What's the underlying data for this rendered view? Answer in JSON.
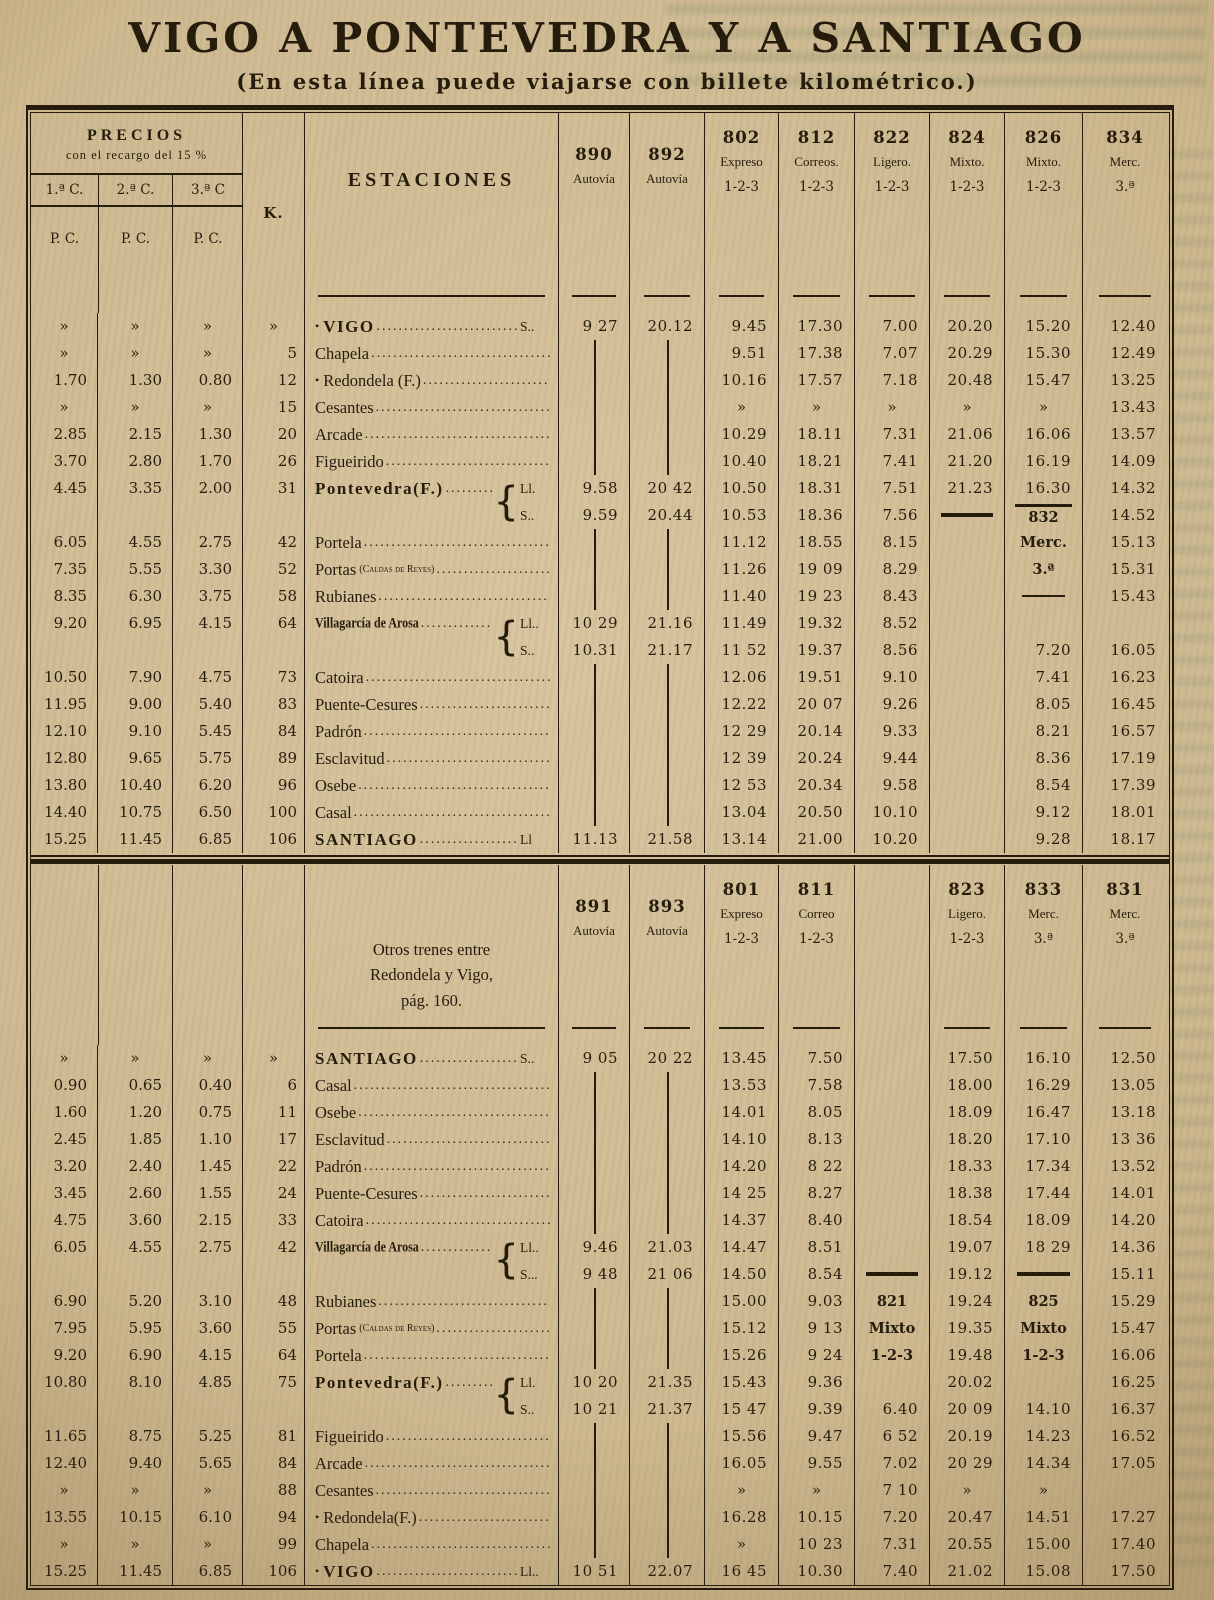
{
  "title": "VIGO A PONTEVEDRA Y A SANTIAGO",
  "subtitle": "(En esta línea puede viajarse con billete kilométrico.)",
  "colors": {
    "paper": "#cab690",
    "ink": "#241b0c"
  },
  "header": {
    "prices_title": "PRECIOS",
    "prices_subtitle": "con el recargo del 15 %",
    "class_labels": [
      "1.ª C.",
      "2.ª C.",
      "3.ª C"
    ],
    "unit_labels": [
      "P. C.",
      "P. C.",
      "P. C."
    ],
    "km_label": "K.",
    "stations_label": "ESTACIONES"
  },
  "sections": [
    {
      "trains": [
        {
          "number": "890",
          "type": "Autovía",
          "cls": ""
        },
        {
          "number": "892",
          "type": "Autovía",
          "cls": ""
        },
        {
          "number": "802",
          "type": "Expreso",
          "cls": "1-2-3"
        },
        {
          "number": "812",
          "type": "Correos.",
          "cls": "1-2-3"
        },
        {
          "number": "822",
          "type": "Ligero.",
          "cls": "1-2-3"
        },
        {
          "number": "824",
          "type": "Mixto.",
          "cls": "1-2-3"
        },
        {
          "number": "826",
          "type": "Mixto.",
          "cls": "1-2-3"
        },
        {
          "number": "834",
          "type": "Merc.",
          "cls": "3.ª"
        }
      ],
      "rows": [
        {
          "p": [
            "»",
            "»",
            "»"
          ],
          "km": "»",
          "prefix": "•",
          "name": "VIGO",
          "emph": true,
          "stop": "S..",
          "t": [
            "9 27",
            "20.12",
            "9.45",
            "17.30",
            "7.00",
            "20.20",
            "15.20",
            "12.40"
          ]
        },
        {
          "p": [
            "»",
            "»",
            "»"
          ],
          "km": "5",
          "name": "Chapela",
          "t": [
            "|",
            "|",
            "9.51",
            "17.38",
            "7.07",
            "20.29",
            "15.30",
            "12.49"
          ]
        },
        {
          "p": [
            "1.70",
            "1.30",
            "0.80"
          ],
          "km": "12",
          "prefix": "•",
          "name": "Redondela (F.)",
          "t": [
            "|",
            "|",
            "10.16",
            "17.57",
            "7.18",
            "20.48",
            "15.47",
            "13.25"
          ]
        },
        {
          "p": [
            "»",
            "»",
            "»"
          ],
          "km": "15",
          "name": "Cesantes",
          "t": [
            "|",
            "|",
            "»",
            "»",
            "»",
            "»",
            "»",
            "13.43"
          ]
        },
        {
          "p": [
            "2.85",
            "2.15",
            "1.30"
          ],
          "km": "20",
          "name": "Arcade",
          "t": [
            "|",
            "|",
            "10.29",
            "18.11",
            "7.31",
            "21.06",
            "16.06",
            "13.57"
          ]
        },
        {
          "p": [
            "3.70",
            "2.80",
            "1.70"
          ],
          "km": "26",
          "name": "Figueirido",
          "t": [
            "|",
            "|",
            "10.40",
            "18.21",
            "7.41",
            "21.20",
            "16.19",
            "14.09"
          ]
        },
        {
          "p": [
            "4.45",
            "3.35",
            "2.00"
          ],
          "km": "31",
          "name": "Pontevedra(F.)",
          "emph": true,
          "brace": "start",
          "stop": "Ll.",
          "t": [
            "9.58",
            "20 42",
            "10.50",
            "18.31",
            "7.51",
            "21.23",
            "16.30",
            "14.32"
          ]
        },
        {
          "p": [
            "",
            "",
            ""
          ],
          "km": "",
          "name": "",
          "brace": "end",
          "stop": "S..",
          "t": [
            "9.59",
            "20.44",
            "10.53",
            "18.36",
            "7.56",
            "═",
            "832",
            "14.52"
          ]
        },
        {
          "p": [
            "6.05",
            "4.55",
            "2.75"
          ],
          "km": "42",
          "name": "Portela",
          "t": [
            "|",
            "|",
            "11.12",
            "18.55",
            "8.15",
            "",
            "Merc.",
            "15.13"
          ]
        },
        {
          "p": [
            "7.35",
            "5.55",
            "3.30"
          ],
          "km": "52",
          "name": "Portas",
          "paren": "(Caldas de Reyes)",
          "t": [
            "|",
            "|",
            "11.26",
            "19 09",
            "8.29",
            "",
            "3.ª",
            "15.31"
          ]
        },
        {
          "p": [
            "8.35",
            "6.30",
            "3.75"
          ],
          "km": "58",
          "name": "Rubianes",
          "t": [
            "|",
            "|",
            "11.40",
            "19 23",
            "8.43",
            "",
            "─",
            "15.43"
          ]
        },
        {
          "p": [
            "9.20",
            "6.95",
            "4.15"
          ],
          "km": "64",
          "name": "Villagarcía de Arosa",
          "small": true,
          "brace": "start",
          "stop": "Ll..",
          "t": [
            "10 29",
            "21.16",
            "11.49",
            "19.32",
            "8.52",
            "",
            "",
            ""
          ]
        },
        {
          "p": [
            "",
            "",
            ""
          ],
          "km": "",
          "name": "",
          "brace": "end",
          "stop": "S..",
          "t": [
            "10.31",
            "21.17",
            "11 52",
            "19.37",
            "8.56",
            "",
            "7.20",
            "16.05"
          ]
        },
        {
          "p": [
            "10.50",
            "7.90",
            "4.75"
          ],
          "km": "73",
          "name": "Catoira",
          "t": [
            "|",
            "|",
            "12.06",
            "19.51",
            "9.10",
            "",
            "7.41",
            "16.23"
          ]
        },
        {
          "p": [
            "11.95",
            "9.00",
            "5.40"
          ],
          "km": "83",
          "name": "Puente-Cesures",
          "t": [
            "|",
            "|",
            "12.22",
            "20 07",
            "9.26",
            "",
            "8.05",
            "16.45"
          ]
        },
        {
          "p": [
            "12.10",
            "9.10",
            "5.45"
          ],
          "km": "84",
          "name": "Padrón",
          "t": [
            "|",
            "|",
            "12 29",
            "20.14",
            "9.33",
            "",
            "8.21",
            "16.57"
          ]
        },
        {
          "p": [
            "12.80",
            "9.65",
            "5.75"
          ],
          "km": "89",
          "name": "Esclavitud",
          "t": [
            "|",
            "|",
            "12 39",
            "20.24",
            "9.44",
            "",
            "8.36",
            "17.19"
          ]
        },
        {
          "p": [
            "13.80",
            "10.40",
            "6.20"
          ],
          "km": "96",
          "name": "Osebe",
          "t": [
            "|",
            "|",
            "12 53",
            "20.34",
            "9.58",
            "",
            "8.54",
            "17.39"
          ]
        },
        {
          "p": [
            "14.40",
            "10.75",
            "6.50"
          ],
          "km": "100",
          "name": "Casal",
          "t": [
            "|",
            "|",
            "13.04",
            "20.50",
            "10.10",
            "",
            "9.12",
            "18.01"
          ]
        },
        {
          "p": [
            "15.25",
            "11.45",
            "6.85"
          ],
          "km": "106",
          "name": "SANTIAGO",
          "emph": true,
          "stop": "Ll",
          "t": [
            "11.13",
            "21.58",
            "13.14",
            "21.00",
            "10.20",
            "",
            "9.28",
            "18.17"
          ]
        }
      ]
    },
    {
      "note_lines": [
        "Otros trenes entre",
        "Redondela y Vigo,",
        "pág. 160."
      ],
      "trains": [
        {
          "number": "891",
          "type": "Autovía",
          "cls": ""
        },
        {
          "number": "893",
          "type": "Autovía",
          "cls": ""
        },
        {
          "number": "801",
          "type": "Expreso",
          "cls": "1-2-3"
        },
        {
          "number": "811",
          "type": "Correo",
          "cls": "1-2-3"
        },
        {
          "number": "",
          "type": "",
          "cls": ""
        },
        {
          "number": "823",
          "type": "Ligero.",
          "cls": "1-2-3"
        },
        {
          "number": "833",
          "type": "Merc.",
          "cls": "3.ª"
        },
        {
          "number": "831",
          "type": "Merc.",
          "cls": "3.ª"
        }
      ],
      "rows": [
        {
          "p": [
            "»",
            "»",
            "»"
          ],
          "km": "»",
          "name": "SANTIAGO",
          "emph": true,
          "stop": "S..",
          "t": [
            "9 05",
            "20 22",
            "13.45",
            "7.50",
            "",
            "17.50",
            "16.10",
            "12.50"
          ]
        },
        {
          "p": [
            "0.90",
            "0.65",
            "0.40"
          ],
          "km": "6",
          "name": "Casal",
          "t": [
            "|",
            "|",
            "13.53",
            "7.58",
            "",
            "18.00",
            "16.29",
            "13.05"
          ]
        },
        {
          "p": [
            "1.60",
            "1.20",
            "0.75"
          ],
          "km": "11",
          "name": "Osebe",
          "t": [
            "|",
            "|",
            "14.01",
            "8.05",
            "",
            "18.09",
            "16.47",
            "13.18"
          ]
        },
        {
          "p": [
            "2.45",
            "1.85",
            "1.10"
          ],
          "km": "17",
          "name": "Esclavitud",
          "t": [
            "|",
            "|",
            "14.10",
            "8.13",
            "",
            "18.20",
            "17.10",
            "13 36"
          ]
        },
        {
          "p": [
            "3.20",
            "2.40",
            "1.45"
          ],
          "km": "22",
          "name": "Padrón",
          "t": [
            "|",
            "|",
            "14.20",
            "8 22",
            "",
            "18.33",
            "17.34",
            "13.52"
          ]
        },
        {
          "p": [
            "3.45",
            "2.60",
            "1.55"
          ],
          "km": "24",
          "name": "Puente-Cesures",
          "t": [
            "|",
            "|",
            "14 25",
            "8.27",
            "",
            "18.38",
            "17.44",
            "14.01"
          ]
        },
        {
          "p": [
            "4.75",
            "3.60",
            "2.15"
          ],
          "km": "33",
          "name": "Catoira",
          "t": [
            "|",
            "|",
            "14.37",
            "8.40",
            "",
            "18.54",
            "18.09",
            "14.20"
          ]
        },
        {
          "p": [
            "6.05",
            "4.55",
            "2.75"
          ],
          "km": "42",
          "name": "Villagarcía de Arosa",
          "small": true,
          "brace": "start",
          "stop": "Ll..",
          "t": [
            "9.46",
            "21.03",
            "14.47",
            "8.51",
            "",
            "19.07",
            "18 29",
            "14.36"
          ]
        },
        {
          "p": [
            "",
            "",
            ""
          ],
          "km": "",
          "name": "",
          "brace": "end",
          "stop": "S...",
          "t": [
            "9 48",
            "21 06",
            "14.50",
            "8.54",
            "═",
            "19.12",
            "═",
            "15.11"
          ]
        },
        {
          "p": [
            "6.90",
            "5.20",
            "3.10"
          ],
          "km": "48",
          "name": "Rubianes",
          "t": [
            "|",
            "|",
            "15.00",
            "9.03",
            "821",
            "19.24",
            "825",
            "15.29"
          ]
        },
        {
          "p": [
            "7.95",
            "5.95",
            "3.60"
          ],
          "km": "55",
          "name": "Portas",
          "paren": "(Caldas de Reyes)",
          "t": [
            "|",
            "|",
            "15.12",
            "9 13",
            "Mixto",
            "19.35",
            "Mixto",
            "15.47"
          ]
        },
        {
          "p": [
            "9.20",
            "6.90",
            "4.15"
          ],
          "km": "64",
          "name": "Portela",
          "t": [
            "|",
            "|",
            "15.26",
            "9 24",
            "1-2-3",
            "19.48",
            "1-2-3",
            "16.06"
          ]
        },
        {
          "p": [
            "10.80",
            "8.10",
            "4.85"
          ],
          "km": "75",
          "name": "Pontevedra(F.)",
          "emph": true,
          "brace": "start",
          "stop": "Ll.",
          "t": [
            "10 20",
            "21.35",
            "15.43",
            "9.36",
            "",
            "20.02",
            "",
            "16.25"
          ]
        },
        {
          "p": [
            "",
            "",
            ""
          ],
          "km": "",
          "name": "",
          "brace": "end",
          "stop": "S..",
          "t": [
            "10 21",
            "21.37",
            "15 47",
            "9.39",
            "6.40",
            "20 09",
            "14.10",
            "16.37"
          ]
        },
        {
          "p": [
            "11.65",
            "8.75",
            "5.25"
          ],
          "km": "81",
          "name": "Figueirido",
          "t": [
            "|",
            "|",
            "15.56",
            "9.47",
            "6 52",
            "20.19",
            "14.23",
            "16.52"
          ]
        },
        {
          "p": [
            "12.40",
            "9.40",
            "5.65"
          ],
          "km": "84",
          "name": "Arcade",
          "t": [
            "|",
            "|",
            "16.05",
            "9.55",
            "7.02",
            "20 29",
            "14.34",
            "17.05"
          ]
        },
        {
          "p": [
            "»",
            "»",
            "»"
          ],
          "km": "88",
          "name": "Cesantes",
          "t": [
            "|",
            "|",
            "»",
            "»",
            "7 10",
            "»",
            "»",
            ""
          ]
        },
        {
          "p": [
            "13.55",
            "10.15",
            "6.10"
          ],
          "km": "94",
          "prefix": "•",
          "name": "Redondela(F.)",
          "t": [
            "|",
            "|",
            "16.28",
            "10.15",
            "7.20",
            "20.47",
            "14.51",
            "17.27"
          ]
        },
        {
          "p": [
            "»",
            "»",
            "»"
          ],
          "km": "99",
          "name": "Chapela",
          "t": [
            "|",
            "|",
            "»",
            "10 23",
            "7.31",
            "20.55",
            "15.00",
            "17.40"
          ]
        },
        {
          "p": [
            "15.25",
            "11.45",
            "6.85"
          ],
          "km": "106",
          "prefix": "•",
          "name": "VIGO",
          "emph": true,
          "stop": "Ll..",
          "t": [
            "10 51",
            "22.07",
            "16 45",
            "10.30",
            "7.40",
            "21.02",
            "15.08",
            "17.50"
          ]
        }
      ]
    }
  ]
}
